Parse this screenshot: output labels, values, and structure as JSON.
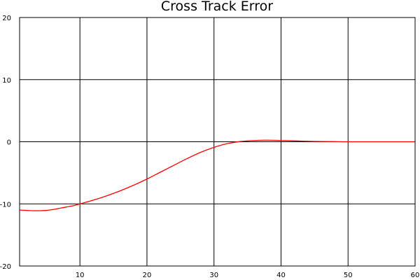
{
  "chart_data": {
    "type": "line",
    "title": "Cross Track Error",
    "xlabel": "",
    "ylabel": "",
    "xlim": [
      1,
      60
    ],
    "ylim": [
      -20,
      20
    ],
    "xticks": [
      10,
      20,
      30,
      40,
      50,
      60
    ],
    "yticks": [
      -20,
      -10,
      0,
      10,
      20
    ],
    "grid": true,
    "series": [
      {
        "color": "#ff0000",
        "x": [
          1,
          2,
          3,
          4,
          5,
          6,
          7,
          8,
          9,
          10,
          12,
          14,
          16,
          18,
          20,
          22,
          24,
          26,
          28,
          30,
          32,
          34,
          36,
          38,
          40,
          42,
          44,
          46,
          48,
          50,
          55,
          60
        ],
        "y": [
          -11.0,
          -11.05,
          -11.1,
          -11.1,
          -11.05,
          -10.9,
          -10.7,
          -10.5,
          -10.3,
          -10.0,
          -9.4,
          -8.7,
          -7.9,
          -7.0,
          -6.0,
          -4.9,
          -3.8,
          -2.7,
          -1.7,
          -0.9,
          -0.3,
          0.05,
          0.2,
          0.25,
          0.2,
          0.15,
          0.08,
          0.04,
          0.02,
          0.0,
          0.0,
          0.0
        ]
      }
    ]
  }
}
